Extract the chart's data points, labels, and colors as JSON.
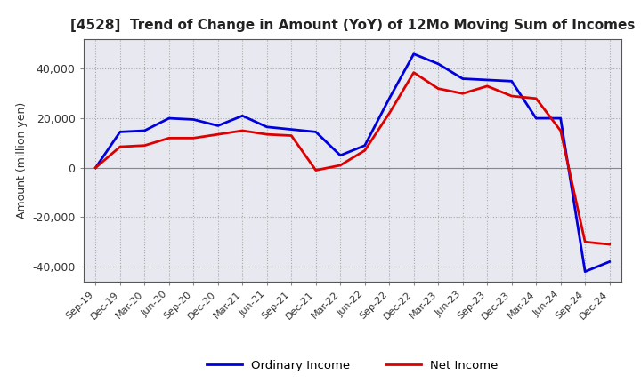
{
  "title": "[4528]  Trend of Change in Amount (YoY) of 12Mo Moving Sum of Incomes",
  "ylabel": "Amount (million yen)",
  "ylim": [
    -46000,
    52000
  ],
  "yticks": [
    -40000,
    -20000,
    0,
    20000,
    40000
  ],
  "plot_bg_color": "#e8e8f0",
  "background_color": "#ffffff",
  "grid_color": "#aaaaaa",
  "ordinary_income_color": "#0000dd",
  "net_income_color": "#dd0000",
  "x_labels": [
    "Sep-19",
    "Dec-19",
    "Mar-20",
    "Jun-20",
    "Sep-20",
    "Dec-20",
    "Mar-21",
    "Jun-21",
    "Sep-21",
    "Dec-21",
    "Mar-22",
    "Jun-22",
    "Sep-22",
    "Dec-22",
    "Mar-23",
    "Jun-23",
    "Sep-23",
    "Dec-23",
    "Mar-24",
    "Jun-24",
    "Sep-24",
    "Dec-24"
  ],
  "ordinary_income": [
    0,
    14500,
    15000,
    20000,
    19500,
    17000,
    21000,
    16500,
    15500,
    14500,
    5000,
    9000,
    28000,
    46000,
    42000,
    36000,
    35500,
    35000,
    20000,
    20000,
    -42000,
    -38000
  ],
  "net_income": [
    0,
    8500,
    9000,
    12000,
    12000,
    13500,
    15000,
    13500,
    13000,
    -1000,
    1000,
    7000,
    22000,
    38500,
    32000,
    30000,
    33000,
    29000,
    28000,
    15000,
    -30000,
    -31000
  ]
}
